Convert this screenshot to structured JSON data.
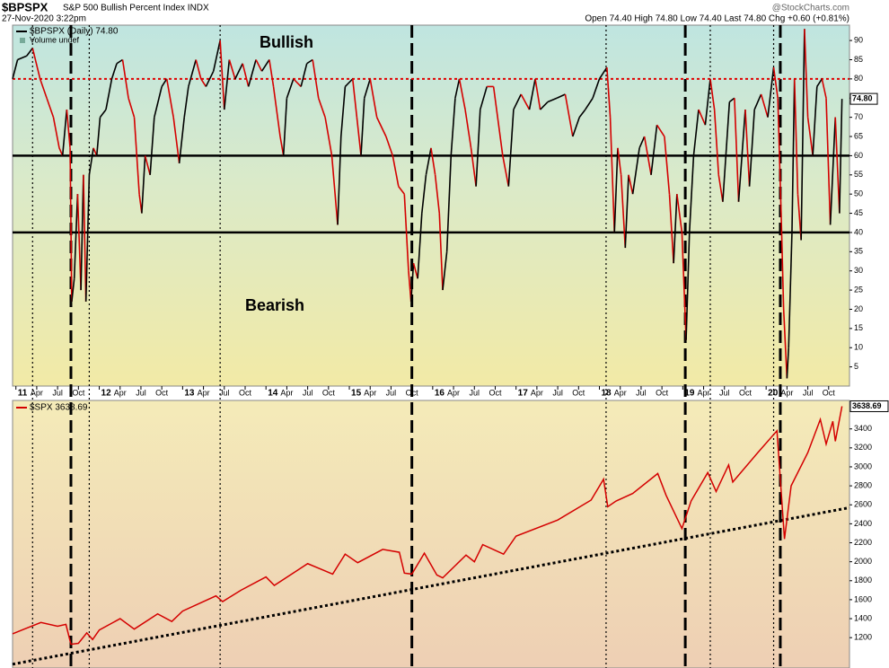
{
  "header": {
    "symbol": "$BPSPX",
    "name": "S&P 500 Bullish Percent Index INDX",
    "date": "27-Nov-2020 3:22pm",
    "quote": "Open 74.40  High 74.80  Low 74.40  Last 74.80  Chg +0.60 (+0.81%)",
    "watermark": "@StockCharts.com"
  },
  "chart_data": [
    {
      "type": "line",
      "legend": [
        "$BPSPX (Daily) 74.80",
        "Volume undef"
      ],
      "last_label": "74.80",
      "annotations": [
        "Bullish",
        "Bearish"
      ],
      "color": "#d40000",
      "rise_color": "#000000",
      "xlim": [
        2010.96,
        2021.0
      ],
      "ylim": [
        0,
        94
      ],
      "yticks": [
        5,
        10,
        15,
        20,
        25,
        30,
        35,
        40,
        45,
        50,
        55,
        60,
        65,
        70,
        75,
        80,
        85,
        90
      ],
      "xticks": [
        {
          "value": 2011,
          "label": "11"
        },
        {
          "value": 2011.25,
          "label": "Apr"
        },
        {
          "value": 2011.5,
          "label": "Jul"
        },
        {
          "value": 2011.75,
          "label": "Oct"
        },
        {
          "value": 2012,
          "label": "12"
        },
        {
          "value": 2012.25,
          "label": "Apr"
        },
        {
          "value": 2012.5,
          "label": "Jul"
        },
        {
          "value": 2012.75,
          "label": "Oct"
        },
        {
          "value": 2013,
          "label": "13"
        },
        {
          "value": 2013.25,
          "label": "Apr"
        },
        {
          "value": 2013.5,
          "label": "Jul"
        },
        {
          "value": 2013.75,
          "label": "Oct"
        },
        {
          "value": 2014,
          "label": "14"
        },
        {
          "value": 2014.25,
          "label": "Apr"
        },
        {
          "value": 2014.5,
          "label": "Jul"
        },
        {
          "value": 2014.75,
          "label": "Oct"
        },
        {
          "value": 2015,
          "label": "15"
        },
        {
          "value": 2015.25,
          "label": "Apr"
        },
        {
          "value": 2015.5,
          "label": "Jul"
        },
        {
          "value": 2015.75,
          "label": "Oct"
        },
        {
          "value": 2016,
          "label": "16"
        },
        {
          "value": 2016.25,
          "label": "Apr"
        },
        {
          "value": 2016.5,
          "label": "Jul"
        },
        {
          "value": 2016.75,
          "label": "Oct"
        },
        {
          "value": 2017,
          "label": "17"
        },
        {
          "value": 2017.25,
          "label": "Apr"
        },
        {
          "value": 2017.5,
          "label": "Jul"
        },
        {
          "value": 2017.75,
          "label": "Oct"
        },
        {
          "value": 2018,
          "label": "18"
        },
        {
          "value": 2018.25,
          "label": "Apr"
        },
        {
          "value": 2018.5,
          "label": "Jul"
        },
        {
          "value": 2018.75,
          "label": "Oct"
        },
        {
          "value": 2019,
          "label": "19"
        },
        {
          "value": 2019.25,
          "label": "Apr"
        },
        {
          "value": 2019.5,
          "label": "Jul"
        },
        {
          "value": 2019.75,
          "label": "Oct"
        },
        {
          "value": 2020,
          "label": "20"
        },
        {
          "value": 2020.25,
          "label": "Apr"
        },
        {
          "value": 2020.5,
          "label": "Jul"
        },
        {
          "value": 2020.75,
          "label": "Oct"
        }
      ],
      "hlines": [
        {
          "value": 80,
          "color": "#e00000",
          "style": "dotted"
        },
        {
          "value": 60,
          "color": "#000000",
          "style": "solid"
        },
        {
          "value": 40,
          "color": "#000000",
          "style": "solid"
        }
      ],
      "vlines": [
        {
          "x": 2011.2,
          "style": "dotted"
        },
        {
          "x": 2011.66,
          "style": "dashed"
        },
        {
          "x": 2011.88,
          "style": "dotted"
        },
        {
          "x": 2013.45,
          "style": "dotted"
        },
        {
          "x": 2015.75,
          "style": "dashed"
        },
        {
          "x": 2018.08,
          "style": "dotted"
        },
        {
          "x": 2019.03,
          "style": "dashed"
        },
        {
          "x": 2019.33,
          "style": "dotted"
        },
        {
          "x": 2020.09,
          "style": "dotted"
        },
        {
          "x": 2020.17,
          "style": "dashed"
        }
      ],
      "x": [
        2010.96,
        2011.02,
        2011.13,
        2011.2,
        2011.29,
        2011.37,
        2011.45,
        2011.52,
        2011.56,
        2011.61,
        2011.65,
        2011.67,
        2011.7,
        2011.74,
        2011.78,
        2011.81,
        2011.84,
        2011.88,
        2011.93,
        2011.97,
        2012.01,
        2012.08,
        2012.15,
        2012.21,
        2012.28,
        2012.35,
        2012.42,
        2012.48,
        2012.51,
        2012.55,
        2012.61,
        2012.66,
        2012.75,
        2012.81,
        2012.89,
        2012.96,
        2013.02,
        2013.07,
        2013.16,
        2013.22,
        2013.28,
        2013.37,
        2013.45,
        2013.5,
        2013.56,
        2013.63,
        2013.72,
        2013.79,
        2013.88,
        2013.95,
        2014.04,
        2014.09,
        2014.17,
        2014.21,
        2014.25,
        2014.33,
        2014.42,
        2014.49,
        2014.56,
        2014.63,
        2014.71,
        2014.79,
        2014.86,
        2014.9,
        2014.95,
        2015.04,
        2015.09,
        2015.14,
        2015.18,
        2015.25,
        2015.33,
        2015.44,
        2015.52,
        2015.59,
        2015.66,
        2015.71,
        2015.74,
        2015.77,
        2015.82,
        2015.87,
        2015.92,
        2015.98,
        2016.03,
        2016.08,
        2016.12,
        2016.17,
        2016.22,
        2016.27,
        2016.32,
        2016.39,
        2016.46,
        2016.52,
        2016.57,
        2016.65,
        2016.73,
        2016.84,
        2016.91,
        2016.97,
        2017.06,
        2017.16,
        2017.23,
        2017.29,
        2017.38,
        2017.49,
        2017.59,
        2017.68,
        2017.76,
        2017.83,
        2017.92,
        2018.0,
        2018.09,
        2018.13,
        2018.18,
        2018.22,
        2018.26,
        2018.31,
        2018.35,
        2018.4,
        2018.48,
        2018.54,
        2018.62,
        2018.69,
        2018.78,
        2018.84,
        2018.89,
        2018.93,
        2018.99,
        2019.04,
        2019.08,
        2019.13,
        2019.19,
        2019.27,
        2019.33,
        2019.38,
        2019.43,
        2019.48,
        2019.56,
        2019.62,
        2019.67,
        2019.75,
        2019.8,
        2019.86,
        2019.94,
        2020.02,
        2020.09,
        2020.14,
        2020.18,
        2020.21,
        2020.25,
        2020.27,
        2020.31,
        2020.34,
        2020.38,
        2020.42,
        2020.46,
        2020.5,
        2020.56,
        2020.61,
        2020.67,
        2020.72,
        2020.77,
        2020.83,
        2020.88,
        2020.91
      ],
      "values": [
        80,
        85,
        86,
        88,
        80,
        75,
        70,
        62,
        60,
        72,
        62,
        22,
        28,
        50,
        25,
        55,
        22,
        55,
        62,
        60,
        70,
        72,
        80,
        84,
        85,
        75,
        70,
        50,
        45,
        60,
        55,
        70,
        78,
        80,
        70,
        58,
        70,
        78,
        85,
        80,
        78,
        82,
        90,
        72,
        85,
        80,
        84,
        78,
        85,
        82,
        85,
        78,
        65,
        60,
        75,
        80,
        78,
        84,
        85,
        75,
        70,
        60,
        42,
        65,
        78,
        80,
        70,
        60,
        75,
        80,
        70,
        65,
        60,
        52,
        50,
        30,
        22,
        32,
        28,
        45,
        55,
        62,
        55,
        45,
        25,
        35,
        60,
        75,
        80,
        72,
        62,
        52,
        72,
        78,
        78,
        60,
        52,
        72,
        76,
        72,
        80,
        72,
        74,
        75,
        76,
        65,
        70,
        72,
        75,
        80,
        83,
        70,
        40,
        62,
        55,
        36,
        55,
        50,
        62,
        65,
        55,
        68,
        65,
        50,
        32,
        50,
        40,
        12,
        40,
        60,
        72,
        68,
        80,
        72,
        55,
        48,
        74,
        75,
        48,
        72,
        52,
        72,
        76,
        70,
        83,
        75,
        45,
        20,
        2,
        10,
        40,
        80,
        50,
        38,
        93,
        70,
        60,
        78,
        80,
        75,
        42,
        70,
        45,
        74.8
      ]
    },
    {
      "type": "line",
      "legend": [
        "$SPX 3638.69"
      ],
      "last_label": "3638.69",
      "color": "#d40000",
      "xlim": [
        2010.96,
        2021.0
      ],
      "ylim": [
        880,
        3700
      ],
      "yticks": [
        1200,
        1400,
        1600,
        1800,
        2000,
        2200,
        2400,
        2600,
        2800,
        3000,
        3200,
        3400
      ],
      "trendline": {
        "x": [
          2010.96,
          2021.0
        ],
        "values": [
          920,
          2570
        ]
      },
      "x": [
        2010.96,
        2011.1,
        2011.3,
        2011.5,
        2011.6,
        2011.66,
        2011.75,
        2011.85,
        2011.92,
        2012.0,
        2012.25,
        2012.42,
        2012.7,
        2012.87,
        2013.0,
        2013.4,
        2013.48,
        2013.7,
        2014.0,
        2014.1,
        2014.5,
        2014.8,
        2014.95,
        2015.1,
        2015.4,
        2015.6,
        2015.66,
        2015.75,
        2015.9,
        2016.05,
        2016.12,
        2016.4,
        2016.5,
        2016.6,
        2016.85,
        2017.0,
        2017.5,
        2017.9,
        2018.05,
        2018.1,
        2018.2,
        2018.4,
        2018.7,
        2018.8,
        2018.99,
        2019.1,
        2019.3,
        2019.4,
        2019.55,
        2019.6,
        2019.9,
        2020.13,
        2020.22,
        2020.3,
        2020.5,
        2020.65,
        2020.72,
        2020.8,
        2020.83,
        2020.91
      ],
      "values": [
        1240,
        1290,
        1360,
        1320,
        1340,
        1130,
        1140,
        1250,
        1180,
        1280,
        1400,
        1290,
        1450,
        1370,
        1480,
        1640,
        1580,
        1700,
        1840,
        1750,
        1980,
        1870,
        2080,
        1990,
        2130,
        2100,
        1880,
        1870,
        2090,
        1860,
        1830,
        2070,
        2000,
        2180,
        2080,
        2270,
        2440,
        2650,
        2870,
        2580,
        2640,
        2720,
        2930,
        2700,
        2350,
        2640,
        2940,
        2740,
        3020,
        2840,
        3150,
        3380,
        2240,
        2800,
        3150,
        3500,
        3240,
        3480,
        3270,
        3638.69
      ]
    }
  ]
}
